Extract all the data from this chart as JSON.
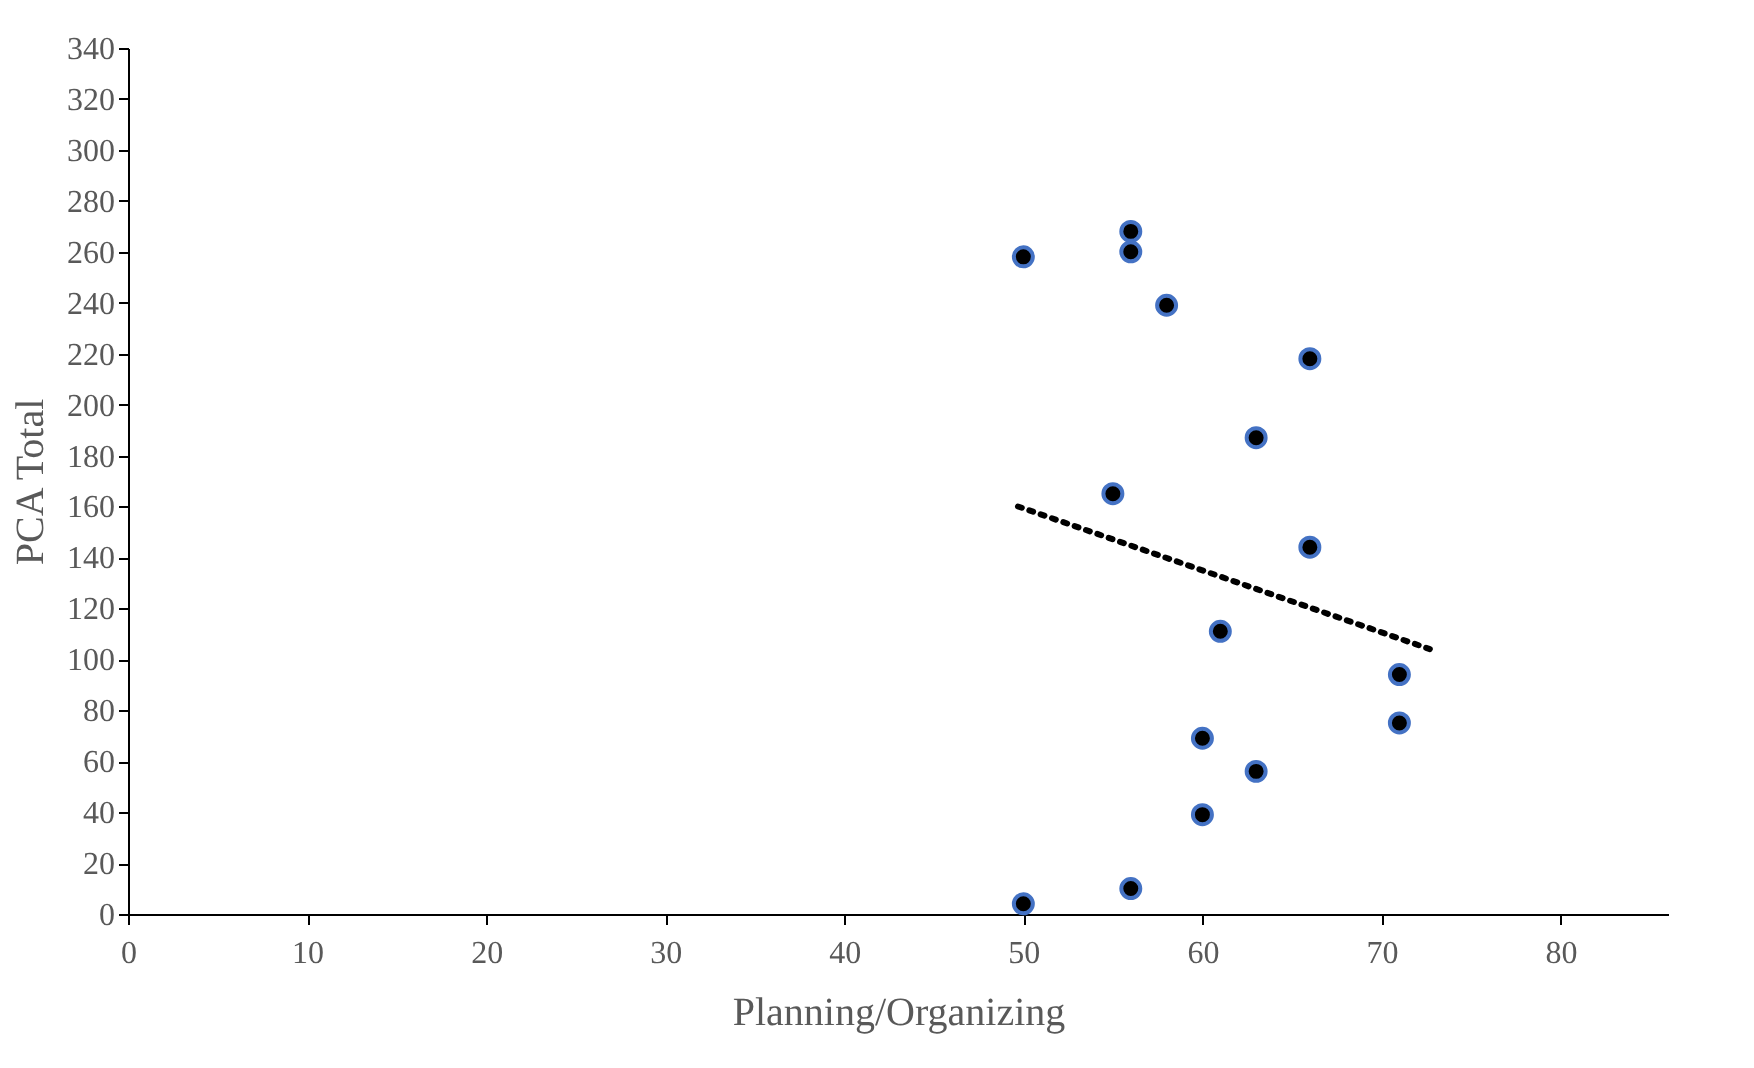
{
  "chart_data": {
    "type": "scatter",
    "xlabel": "Planning/Organizing",
    "ylabel": "PCA Total",
    "xlim": [
      0,
      86
    ],
    "xticks": [
      0,
      10,
      20,
      30,
      40,
      50,
      60,
      70,
      80
    ],
    "ylim": [
      0,
      340
    ],
    "yticks": [
      0,
      20,
      40,
      60,
      80,
      100,
      120,
      140,
      160,
      180,
      200,
      220,
      240,
      260,
      280,
      300,
      320,
      340
    ],
    "grid": false,
    "series": [
      {
        "type": "scatter",
        "color": "#000000",
        "marker": "circle",
        "x": [
          50,
          56,
          56,
          58,
          66,
          63,
          55,
          66,
          61,
          71,
          71,
          60,
          63,
          60,
          56,
          50
        ],
        "values": [
          258,
          268,
          260,
          239,
          218,
          187,
          165,
          144,
          111,
          94,
          75,
          69,
          56,
          39,
          10,
          4
        ]
      },
      {
        "type": "line",
        "color": "#000000",
        "line_style": "dotted",
        "marker": "none",
        "x": [
          49.7,
          72.7
        ],
        "values": [
          160,
          104
        ]
      }
    ]
  }
}
